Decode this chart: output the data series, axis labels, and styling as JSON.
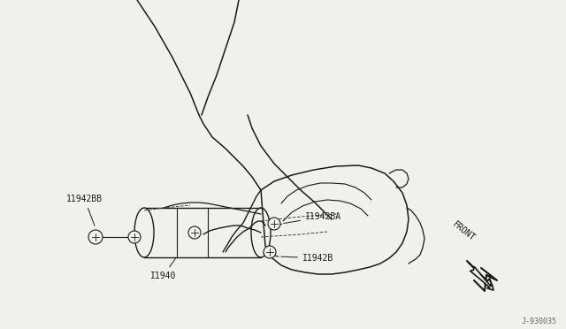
{
  "background_color": "#f2f0ec",
  "line_color": "#1a1a1a",
  "text_color": "#1a1a1a",
  "watermark": "J-930035",
  "front_label": "FRONT",
  "label_11942BB": "11942BB",
  "label_11940": "I1940",
  "label_11942BA": "I1942BA",
  "label_11942B": "I1942B"
}
